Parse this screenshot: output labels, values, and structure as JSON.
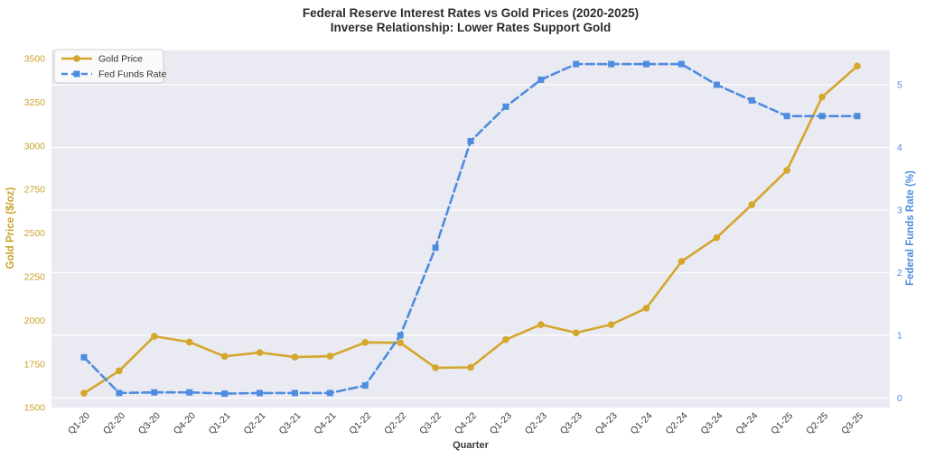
{
  "title": {
    "line1": "Federal Reserve Interest Rates vs Gold Prices (2020-2025)",
    "line2": "Inverse Relationship: Lower Rates Support Gold"
  },
  "legend": {
    "position": "upper-left",
    "items": [
      {
        "label": "Gold Price",
        "color": "#D4A62C",
        "line_style": "solid",
        "marker": "circle"
      },
      {
        "label": "Fed Funds Rate",
        "color": "#4E8CDF",
        "line_style": "dashed",
        "marker": "square"
      }
    ]
  },
  "chart_data": {
    "type": "line",
    "xlabel": "Quarter",
    "categories": [
      "Q1-20",
      "Q2-20",
      "Q3-20",
      "Q4-20",
      "Q1-21",
      "Q2-21",
      "Q3-21",
      "Q4-21",
      "Q1-22",
      "Q2-22",
      "Q3-22",
      "Q4-22",
      "Q1-23",
      "Q2-23",
      "Q3-23",
      "Q4-23",
      "Q1-24",
      "Q2-24",
      "Q3-24",
      "Q4-24",
      "Q1-25",
      "Q2-25",
      "Q3-25"
    ],
    "series": [
      {
        "name": "Gold Price",
        "axis": "left",
        "color": "#D4A62C",
        "line_style": "solid",
        "marker": "circle",
        "values": [
          1583,
          1711,
          1909,
          1876,
          1794,
          1816,
          1790,
          1795,
          1874,
          1872,
          1729,
          1731,
          1890,
          1976,
          1929,
          1976,
          2070,
          2338,
          2474,
          2663,
          2860,
          3280,
          3457
        ]
      },
      {
        "name": "Fed Funds Rate",
        "axis": "right",
        "color": "#4E8CDF",
        "line_style": "dashed",
        "marker": "square",
        "values": [
          0.65,
          0.08,
          0.09,
          0.09,
          0.07,
          0.08,
          0.08,
          0.08,
          0.2,
          1.0,
          2.4,
          4.1,
          4.65,
          5.08,
          5.33,
          5.33,
          5.33,
          5.33,
          5.0,
          4.75,
          4.5,
          4.5,
          4.5
        ]
      }
    ],
    "left_axis": {
      "label": "Gold Price ($/oz)",
      "ticks": [
        1500,
        1750,
        2000,
        2250,
        2500,
        2750,
        3000,
        3250,
        3500
      ],
      "color": "#C9A227"
    },
    "right_axis": {
      "label": "Federal Funds Rate (%)",
      "ticks": [
        0,
        1,
        2,
        3,
        4,
        5
      ],
      "color": "#4E8CDF"
    },
    "grid": {
      "show": true,
      "orientation": "horizontal",
      "follows": "right_axis",
      "color": "#FFFFFF"
    },
    "plot_background": "#EAEAF2"
  },
  "colors": {
    "figure_background": "#FFFFFF",
    "title_text": "#2B2B2B",
    "axis_text": "#3A3A3A",
    "gold": "#D4A62C",
    "blue": "#4E8CDF"
  }
}
